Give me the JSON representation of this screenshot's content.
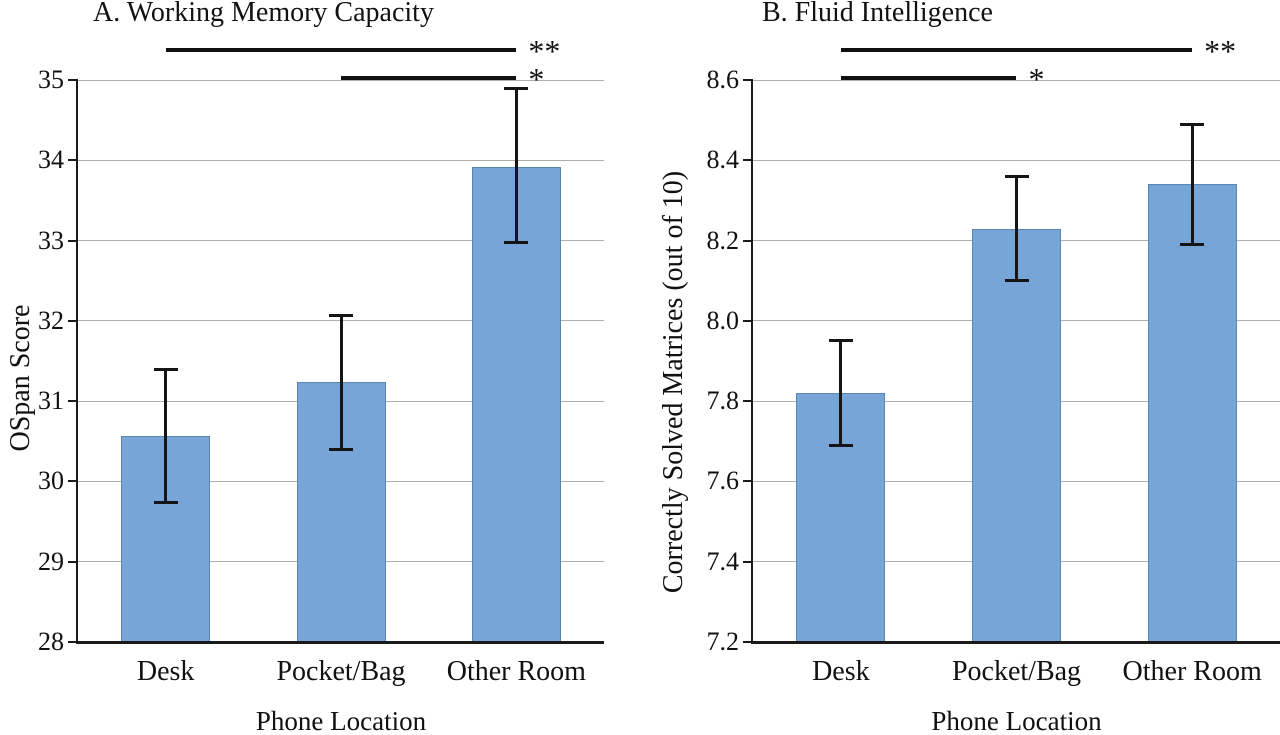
{
  "chart_data": [
    {
      "type": "bar",
      "panel_label": "A",
      "title": "A. Working Memory Capacity",
      "ylabel": "OSpan Score",
      "xlabel": "Phone Location",
      "categories": [
        "Desk",
        "Pocket/Bag",
        "Other Room"
      ],
      "values": [
        30.56,
        31.24,
        33.92
      ],
      "error_low": [
        29.74,
        30.4,
        32.97
      ],
      "error_high": [
        31.4,
        32.07,
        34.9
      ],
      "ylim": [
        28,
        35
      ],
      "yticks": [
        28,
        29,
        30,
        31,
        32,
        33,
        34,
        35
      ],
      "ytick_labels": [
        "28",
        "29",
        "30",
        "31",
        "32",
        "33",
        "34",
        "35"
      ],
      "grid": true,
      "legend": null,
      "bar_color": "#77A5D7",
      "bar_border_color": "#5B84B0",
      "significance": [
        {
          "from": "Desk",
          "to": "Other Room",
          "label": "**"
        },
        {
          "from": "Pocket/Bag",
          "to": "Other Room",
          "label": "*"
        }
      ]
    },
    {
      "type": "bar",
      "panel_label": "B",
      "title": "B. Fluid Intelligence",
      "ylabel": "Correctly Solved Matrices (out of 10)",
      "xlabel": "Phone Location",
      "categories": [
        "Desk",
        "Pocket/Bag",
        "Other Room"
      ],
      "values": [
        7.82,
        8.23,
        8.34
      ],
      "error_low": [
        7.69,
        8.1,
        8.19
      ],
      "error_high": [
        7.95,
        8.36,
        8.49
      ],
      "ylim": [
        7.2,
        8.6
      ],
      "yticks": [
        7.2,
        7.4,
        7.6,
        7.8,
        8.0,
        8.2,
        8.4,
        8.6
      ],
      "ytick_labels": [
        "7.2",
        "7.4",
        "7.6",
        "7.8",
        "8.0",
        "8.2",
        "8.4",
        "8.6"
      ],
      "grid": true,
      "legend": null,
      "bar_color": "#77A5D7",
      "bar_border_color": "#5B84B0",
      "significance": [
        {
          "from": "Desk",
          "to": "Other Room",
          "label": "**"
        },
        {
          "from": "Desk",
          "to": "Pocket/Bag",
          "label": "*"
        }
      ]
    }
  ]
}
